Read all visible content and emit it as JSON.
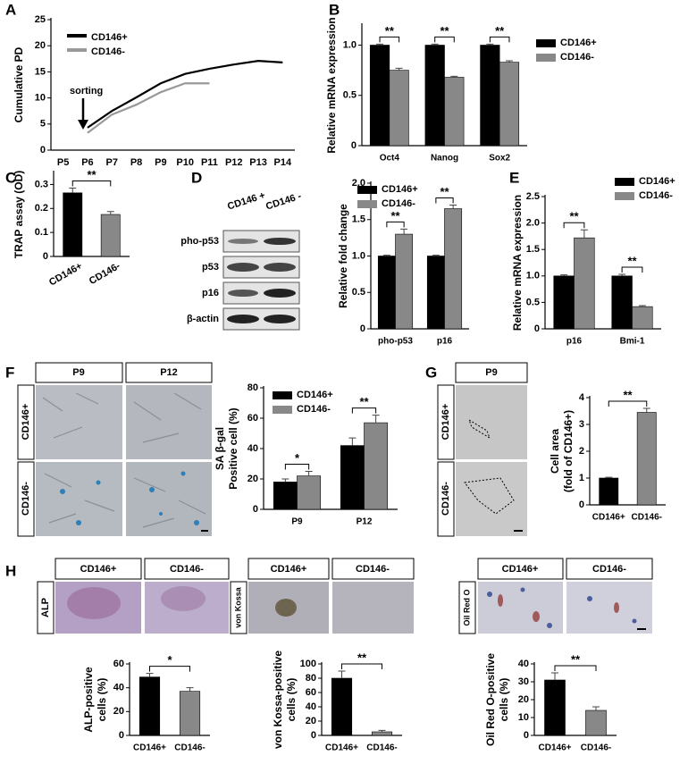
{
  "figure": {
    "panel_letters": [
      "A",
      "B",
      "C",
      "D",
      "E",
      "F",
      "G",
      "H"
    ],
    "blot": {
      "columns": [
        "CD146 +",
        "CD146 -"
      ],
      "rows": [
        "pho-p53",
        "p53",
        "p16",
        "β-actin"
      ]
    },
    "f_images": {
      "columns": [
        "P9",
        "P12"
      ],
      "rows": [
        "CD146+",
        "CD146-"
      ]
    },
    "g_images": {
      "columns": [
        "P9"
      ],
      "rows": [
        "CD146+",
        "CD146-"
      ]
    },
    "h_images": [
      {
        "columns": [
          "CD146+",
          "CD146-"
        ],
        "row": "ALP"
      },
      {
        "columns": [
          "CD146+",
          "CD146-"
        ],
        "row": "von Kossa"
      },
      {
        "columns": [
          "CD146+",
          "CD146-"
        ],
        "row": "Oil Red O"
      }
    ]
  },
  "chart_data": [
    {
      "type": "line",
      "ylabel": [
        "Cumulative PD"
      ],
      "annotation": "sorting",
      "legend": "upper left",
      "categories": [
        "P5",
        "P6",
        "P7",
        "P8",
        "P9",
        "P10",
        "P11",
        "P12",
        "P13",
        "P14"
      ],
      "series": [
        {
          "name": "CD146+",
          "color": "#000000",
          "values": [
            null,
            4.3,
            7.5,
            10.1,
            12.8,
            14.6,
            15.6,
            16.4,
            17.1,
            16.8
          ]
        },
        {
          "name": "CD146-",
          "color": "#999999",
          "values": [
            null,
            3.3,
            6.8,
            8.7,
            11.1,
            12.8,
            12.8,
            null,
            null,
            null
          ]
        }
      ],
      "ylim": [
        0,
        25
      ],
      "yticks": [
        0,
        5,
        10,
        15,
        20,
        25
      ]
    },
    {
      "type": "bar",
      "ylabel": [
        "Relative mRNA expression"
      ],
      "legend": "right",
      "categories": [
        "Oct4",
        "Nanog",
        "Sox2"
      ],
      "series": [
        {
          "name": "CD146+",
          "color": "#000000",
          "values": [
            1,
            1,
            1
          ],
          "errors": [
            0.01,
            0.01,
            0.01
          ]
        },
        {
          "name": "CD146-",
          "color": "#888888",
          "values": [
            0.75,
            0.68,
            0.83
          ],
          "errors": [
            0.02,
            0.01,
            0.015
          ]
        }
      ],
      "significance": [
        "**",
        "**",
        "**"
      ],
      "ylim": [
        0,
        1.2
      ],
      "yticks": [
        0,
        0.5,
        {
          "value": 1,
          "label": "1.0"
        }
      ]
    },
    {
      "type": "bar",
      "ylabel": [
        "TRAP assay (OD)"
      ],
      "categories": [
        "CD146+",
        "CD146-"
      ],
      "values": [
        0.265,
        0.175
      ],
      "errors": [
        0.02,
        0.012
      ],
      "colors": [
        "#000000",
        "#888888"
      ],
      "significance": "**",
      "ylim": [
        0,
        0.35
      ],
      "yticks": [
        0,
        0.1,
        0.2,
        0.3
      ]
    },
    {
      "type": "bar",
      "ylabel": [
        "Relative fold change"
      ],
      "legend": "top",
      "categories": [
        "pho-p53",
        "p16"
      ],
      "series": [
        {
          "name": "CD146+",
          "color": "#000000",
          "values": [
            1,
            1
          ],
          "errors": [
            0.01,
            0.01
          ]
        },
        {
          "name": "CD146-",
          "color": "#888888",
          "values": [
            1.3,
            1.65
          ],
          "errors": [
            0.07,
            0.05
          ]
        }
      ],
      "significance": [
        "**",
        "**"
      ],
      "ylim": [
        0,
        2
      ],
      "yticks": [
        0,
        0.5,
        {
          "value": 1,
          "label": "1.0"
        },
        1.5,
        {
          "value": 2,
          "label": "2.0"
        }
      ]
    },
    {
      "type": "bar",
      "ylabel": [
        "Relative mRNA expression"
      ],
      "legend": "upper right",
      "categories": [
        "p16",
        "Bmi-1"
      ],
      "series": [
        {
          "name": "CD146+",
          "color": "#000000",
          "values": [
            1,
            1
          ],
          "errors": [
            0.02,
            0.03
          ]
        },
        {
          "name": "CD146-",
          "color": "#888888",
          "values": [
            1.72,
            0.42
          ],
          "errors": [
            0.15,
            0.02
          ]
        }
      ],
      "significance": [
        "**",
        "**"
      ],
      "ylim": [
        0,
        2.5
      ],
      "yticks": [
        0,
        0.5,
        {
          "value": 1,
          "label": "1.0"
        },
        1.5,
        {
          "value": 2,
          "label": "2.0"
        },
        2.5
      ]
    },
    {
      "type": "bar",
      "ylabel": [
        "SA β-gal",
        "Positive cell (%)"
      ],
      "legend": "upper left",
      "categories": [
        "P9",
        "P12"
      ],
      "series": [
        {
          "name": "CD146+",
          "color": "#000000",
          "values": [
            18,
            42
          ],
          "errors": [
            2,
            5
          ]
        },
        {
          "name": "CD146-",
          "color": "#888888",
          "values": [
            22,
            57
          ],
          "errors": [
            3,
            5
          ]
        }
      ],
      "significance": [
        "*",
        "**"
      ],
      "ylim": [
        0,
        80
      ],
      "yticks": [
        0,
        20,
        40,
        60,
        80
      ]
    },
    {
      "type": "bar",
      "ylabel": [
        "Cell area",
        "(fold of CD146+)"
      ],
      "categories": [
        "CD146+",
        "CD146-"
      ],
      "values": [
        1,
        3.45
      ],
      "errors": [
        0.03,
        0.15
      ],
      "colors": [
        "#000000",
        "#888888"
      ],
      "significance": "**",
      "ylim": [
        0,
        4
      ],
      "yticks": [
        0,
        1,
        2,
        3,
        4
      ]
    },
    {
      "type": "bar",
      "ylabel": [
        "ALP-positive",
        "cells (%)"
      ],
      "categories": [
        "CD146+",
        "CD146-"
      ],
      "values": [
        49,
        37
      ],
      "errors": [
        3,
        3
      ],
      "colors": [
        "#000000",
        "#888888"
      ],
      "significance": "*",
      "ylim": [
        0,
        60
      ],
      "yticks": [
        0,
        20,
        40,
        60
      ]
    },
    {
      "type": "bar",
      "ylabel": [
        "von Kossa-positive",
        "cells (%)"
      ],
      "categories": [
        "CD146+",
        "CD146-"
      ],
      "values": [
        80,
        5
      ],
      "errors": [
        10,
        2
      ],
      "colors": [
        "#000000",
        "#888888"
      ],
      "significance": "**",
      "ylim": [
        0,
        100
      ],
      "yticks": [
        0,
        20,
        40,
        60,
        80,
        100
      ]
    },
    {
      "type": "bar",
      "ylabel": [
        "Oil Red O-positive",
        "cells (%)"
      ],
      "categories": [
        "CD146+",
        "CD146-"
      ],
      "values": [
        31,
        14
      ],
      "errors": [
        4,
        2
      ],
      "colors": [
        "#000000",
        "#888888"
      ],
      "significance": "**",
      "ylim": [
        0,
        40
      ],
      "yticks": [
        0,
        10,
        20,
        30,
        40
      ]
    }
  ]
}
